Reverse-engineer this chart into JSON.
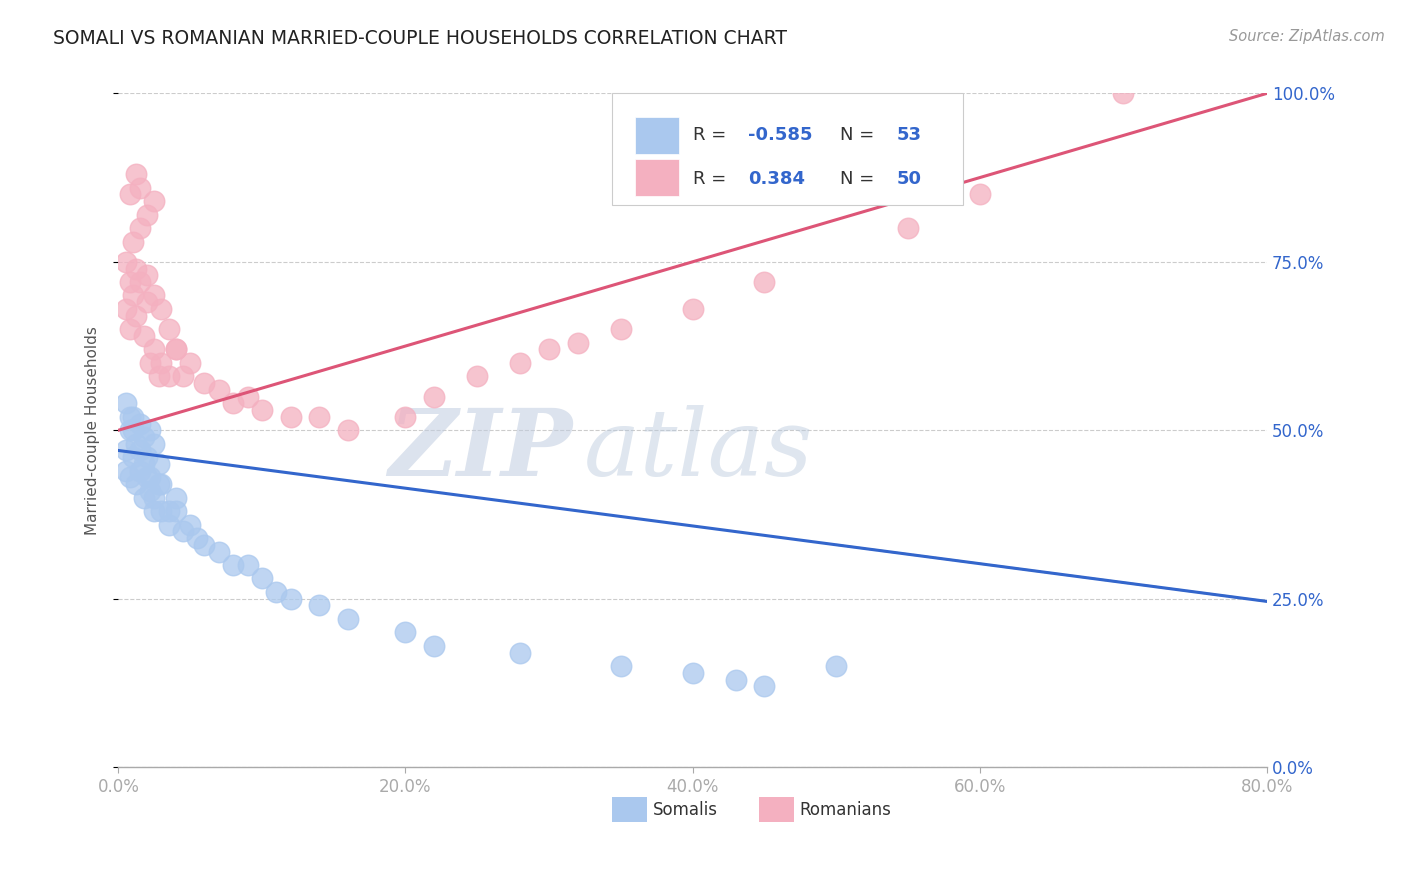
{
  "title": "SOMALI VS ROMANIAN MARRIED-COUPLE HOUSEHOLDS CORRELATION CHART",
  "source": "Source: ZipAtlas.com",
  "ylabel": "Married-couple Households",
  "xlim": [
    0.0,
    0.8
  ],
  "ylim": [
    0.0,
    1.0
  ],
  "grid_color": "#cccccc",
  "background_color": "#ffffff",
  "somali_color": "#aac8ee",
  "romanian_color": "#f4b0c0",
  "somali_line_color": "#3366cc",
  "romanian_line_color": "#dd5577",
  "legend_text_color": "#3366cc",
  "legend_R_color": "#3366cc",
  "somali_R": -0.585,
  "somali_N": 53,
  "romanian_R": 0.384,
  "romanian_N": 50,
  "somali_x": [
    0.005,
    0.008,
    0.01,
    0.012,
    0.015,
    0.018,
    0.02,
    0.022,
    0.025,
    0.028,
    0.005,
    0.008,
    0.01,
    0.012,
    0.015,
    0.018,
    0.02,
    0.022,
    0.025,
    0.028,
    0.005,
    0.008,
    0.01,
    0.015,
    0.018,
    0.022,
    0.025,
    0.03,
    0.035,
    0.04,
    0.03,
    0.035,
    0.04,
    0.045,
    0.05,
    0.055,
    0.06,
    0.07,
    0.08,
    0.09,
    0.1,
    0.11,
    0.12,
    0.14,
    0.16,
    0.2,
    0.22,
    0.28,
    0.35,
    0.4,
    0.43,
    0.45,
    0.5
  ],
  "somali_y": [
    0.47,
    0.5,
    0.52,
    0.48,
    0.51,
    0.49,
    0.46,
    0.5,
    0.48,
    0.45,
    0.44,
    0.43,
    0.46,
    0.42,
    0.44,
    0.4,
    0.43,
    0.41,
    0.38,
    0.42,
    0.54,
    0.52,
    0.5,
    0.47,
    0.45,
    0.43,
    0.4,
    0.42,
    0.38,
    0.4,
    0.38,
    0.36,
    0.38,
    0.35,
    0.36,
    0.34,
    0.33,
    0.32,
    0.3,
    0.3,
    0.28,
    0.26,
    0.25,
    0.24,
    0.22,
    0.2,
    0.18,
    0.17,
    0.15,
    0.14,
    0.13,
    0.12,
    0.15
  ],
  "romanian_x": [
    0.005,
    0.008,
    0.01,
    0.012,
    0.015,
    0.018,
    0.02,
    0.022,
    0.025,
    0.028,
    0.005,
    0.008,
    0.01,
    0.012,
    0.015,
    0.02,
    0.025,
    0.03,
    0.035,
    0.04,
    0.03,
    0.035,
    0.04,
    0.045,
    0.05,
    0.06,
    0.07,
    0.08,
    0.09,
    0.1,
    0.12,
    0.14,
    0.16,
    0.2,
    0.22,
    0.25,
    0.28,
    0.3,
    0.32,
    0.35,
    0.4,
    0.45,
    0.55,
    0.6,
    0.7,
    0.008,
    0.012,
    0.015,
    0.02,
    0.025
  ],
  "romanian_y": [
    0.68,
    0.65,
    0.7,
    0.67,
    0.72,
    0.64,
    0.69,
    0.6,
    0.62,
    0.58,
    0.75,
    0.72,
    0.78,
    0.74,
    0.8,
    0.73,
    0.7,
    0.68,
    0.65,
    0.62,
    0.6,
    0.58,
    0.62,
    0.58,
    0.6,
    0.57,
    0.56,
    0.54,
    0.55,
    0.53,
    0.52,
    0.52,
    0.5,
    0.52,
    0.55,
    0.58,
    0.6,
    0.62,
    0.63,
    0.65,
    0.68,
    0.72,
    0.8,
    0.85,
    1.0,
    0.85,
    0.88,
    0.86,
    0.82,
    0.84
  ],
  "watermark_zip": "ZIP",
  "watermark_atlas": "atlas",
  "watermark_color": "#c8d4e8",
  "dashed_line_color": "#aaaaaa",
  "xtick_vals": [
    0.0,
    0.2,
    0.4,
    0.6,
    0.8
  ],
  "xtick_labels": [
    "0.0%",
    "20.0%",
    "40.0%",
    "60.0%",
    "80.0%"
  ],
  "ytick_vals": [
    0.0,
    0.25,
    0.5,
    0.75,
    1.0
  ],
  "ytick_labels": [
    "0.0%",
    "25.0%",
    "50.0%",
    "75.0%",
    "100.0%"
  ]
}
